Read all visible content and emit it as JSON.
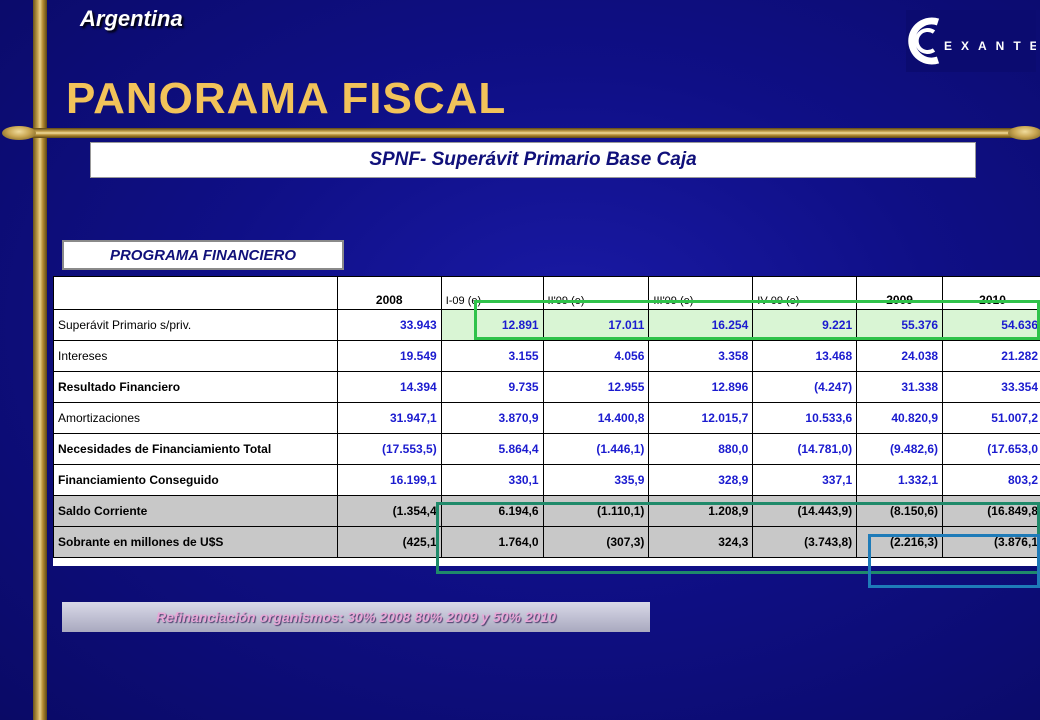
{
  "header": {
    "country": "Argentina",
    "title": "PANORAMA FISCAL",
    "subtitle": "SPNF- Superávit Primario Base Caja",
    "logo_text": "EXANTE"
  },
  "section_label": "PROGRAMA FINANCIERO",
  "table": {
    "columns": [
      "2008",
      "I-09 (e)",
      "II'09 (e)",
      "III'09 (e)",
      "IV-09 (e)",
      "2009",
      "2010"
    ],
    "rows": [
      {
        "label": "Superávit Primario s/priv.",
        "values": [
          "33.943",
          "12.891",
          "17.011",
          "16.254",
          "9.221",
          "55.376",
          "54.636"
        ]
      },
      {
        "label": "Intereses",
        "values": [
          "19.549",
          "3.155",
          "4.056",
          "3.358",
          "13.468",
          "24.038",
          "21.282"
        ]
      },
      {
        "label": "Resultado Financiero",
        "values": [
          "14.394",
          "9.735",
          "12.955",
          "12.896",
          "(4.247)",
          "31.338",
          "33.354"
        ]
      },
      {
        "label": "Amortizaciones",
        "values": [
          "31.947,1",
          "3.870,9",
          "14.400,8",
          "12.015,7",
          "10.533,6",
          "40.820,9",
          "51.007,2"
        ]
      },
      {
        "label": "Necesidades de Financiamiento Total",
        "values": [
          "(17.553,5)",
          "5.864,4",
          "(1.446,1)",
          "880,0",
          "(14.781,0)",
          "(9.482,6)",
          "(17.653,0"
        ]
      },
      {
        "label": "Financiamiento Conseguido",
        "values": [
          "16.199,1",
          "330,1",
          "335,9",
          "328,9",
          "337,1",
          "1.332,1",
          "803,2"
        ]
      },
      {
        "label": "Saldo Corriente",
        "values": [
          "(1.354,4",
          "6.194,6",
          "(1.110,1)",
          "1.208,9",
          "(14.443,9)",
          "(8.150,6)",
          "(16.849,8"
        ]
      },
      {
        "label": "Sobrante en millones de U$S",
        "values": [
          "(425,1",
          "1.764,0",
          "(307,3)",
          "324,3",
          "(3.743,8)",
          "(2.216,3)",
          "(3.876,1"
        ]
      }
    ]
  },
  "note": "Refinanciación organismos: 30% 2008 80% 2009 y 50% 2010",
  "colors": {
    "background": "#0f0f86",
    "title": "#f2c35a",
    "numbers": "#1b1bcf",
    "highlight_green": "#2fc24a",
    "highlight_teal": "#1f8a6a",
    "highlight_blue": "#1e7bb8"
  }
}
